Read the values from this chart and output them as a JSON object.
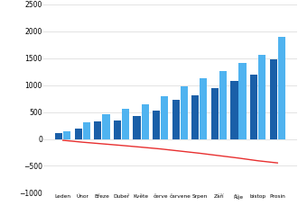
{
  "months": [
    "Leden",
    "Únor",
    "Březe",
    "Dubeř",
    "Květe",
    "červe",
    "čarvene",
    "Srpen",
    "Září",
    "Říje",
    "bistop",
    "Prosin"
  ],
  "dark_blue_bars": [
    105,
    195,
    320,
    345,
    420,
    535,
    720,
    810,
    940,
    1075,
    1195,
    1475
  ],
  "light_blue_bars": [
    148,
    305,
    465,
    555,
    650,
    795,
    975,
    1125,
    1265,
    1415,
    1555,
    1900
  ],
  "red_line": [
    -25,
    -60,
    -90,
    -120,
    -152,
    -185,
    -225,
    -265,
    -310,
    -355,
    -405,
    -445
  ],
  "ylim": [
    -1000,
    2500
  ],
  "yticks": [
    -1000,
    -500,
    0,
    500,
    1000,
    1500,
    2000,
    2500
  ],
  "dark_blue_color": "#1a5fa8",
  "light_blue_color": "#4fb3f0",
  "red_color": "#e83030",
  "background_color": "#ffffff",
  "grid_color": "#d8d8d8",
  "bar_width": 0.38,
  "bar_gap": 0.04
}
